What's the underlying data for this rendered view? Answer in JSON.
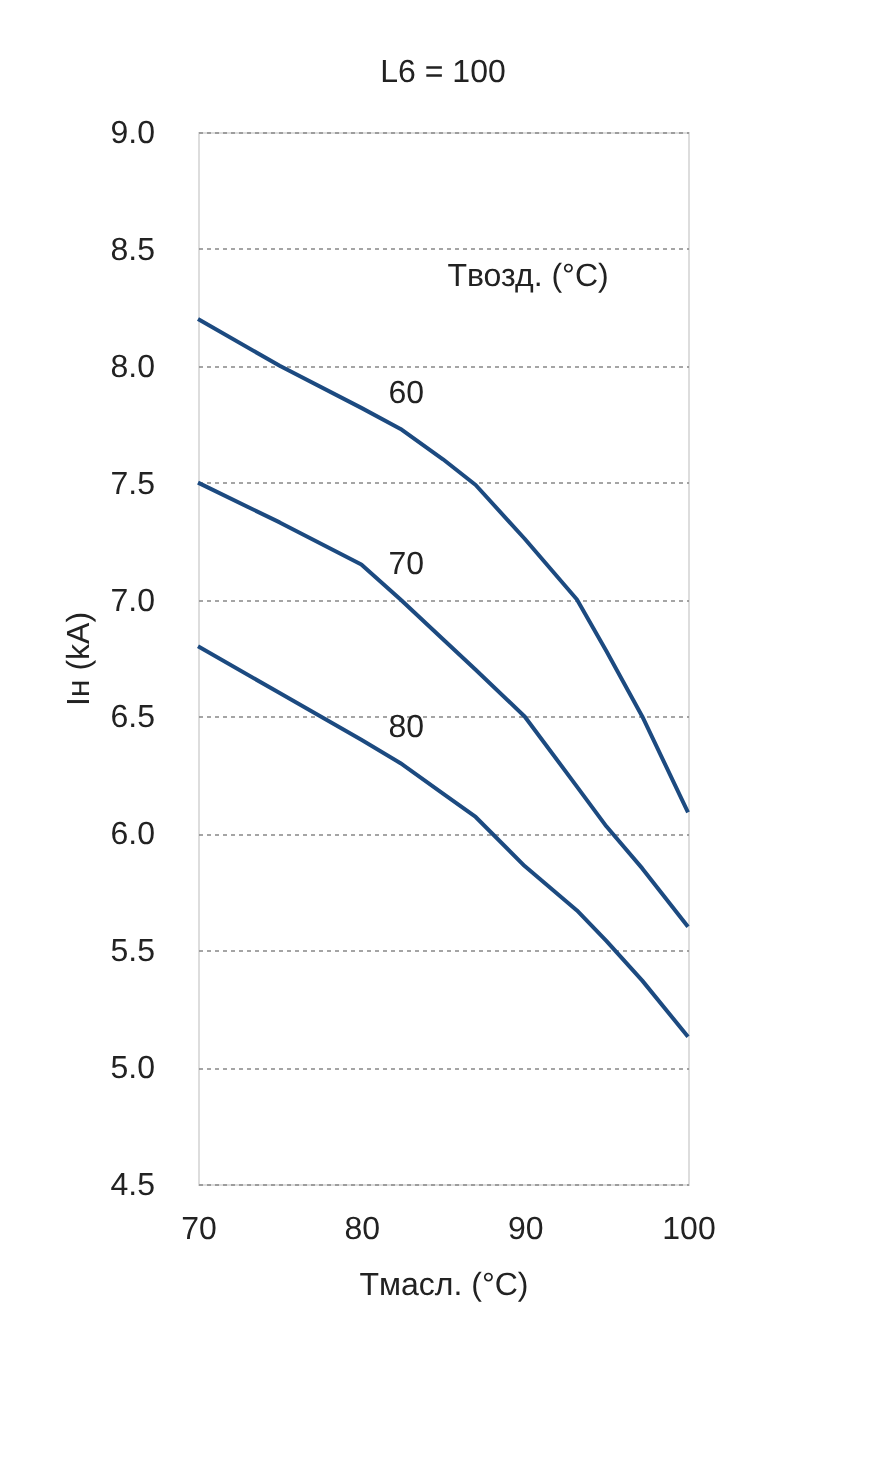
{
  "chart_data": {
    "type": "line",
    "title": "L6 = 100",
    "xlabel": "Tмасл. (°C)",
    "ylabel": "Iн (kA)",
    "x": [
      70,
      75,
      80,
      82.4,
      85,
      87,
      90,
      93.2,
      95,
      97.2,
      100
    ],
    "series": [
      {
        "name": "60",
        "color": "#1c4a80",
        "values": [
          8.2,
          8.0,
          7.82,
          7.73,
          7.6,
          7.49,
          7.26,
          7.0,
          6.78,
          6.5,
          6.09
        ]
      },
      {
        "name": "70",
        "color": "#1c4a80",
        "values": [
          7.5,
          7.33,
          7.15,
          7.0,
          6.83,
          6.7,
          6.5,
          6.2,
          6.03,
          5.85,
          5.6
        ]
      },
      {
        "name": "80",
        "color": "#1c4a80",
        "values": [
          6.8,
          6.6,
          6.4,
          6.3,
          6.17,
          6.07,
          5.86,
          5.67,
          5.54,
          5.37,
          5.13
        ]
      }
    ],
    "xlim": [
      70,
      100
    ],
    "xticks": [
      70,
      80,
      90,
      100
    ],
    "ylim": [
      4.5,
      9.0
    ],
    "yticks": [
      {
        "value": 4.5,
        "label": "4.5"
      },
      {
        "value": 5.0,
        "label": "5.0"
      },
      {
        "value": 5.5,
        "label": "5.5"
      },
      {
        "value": 6.0,
        "label": "6.0"
      },
      {
        "value": 6.5,
        "label": "6.5"
      },
      {
        "value": 7.0,
        "label": "7.0"
      },
      {
        "value": 7.5,
        "label": "7.5"
      },
      {
        "value": 8.0,
        "label": "8.0"
      },
      {
        "value": 8.5,
        "label": "8.5"
      },
      {
        "value": 9.0,
        "label": "9.0"
      }
    ],
    "grid": "y",
    "line_style": "solid",
    "marker": "none",
    "annotations": [
      "Tвозд. (°C)"
    ]
  }
}
